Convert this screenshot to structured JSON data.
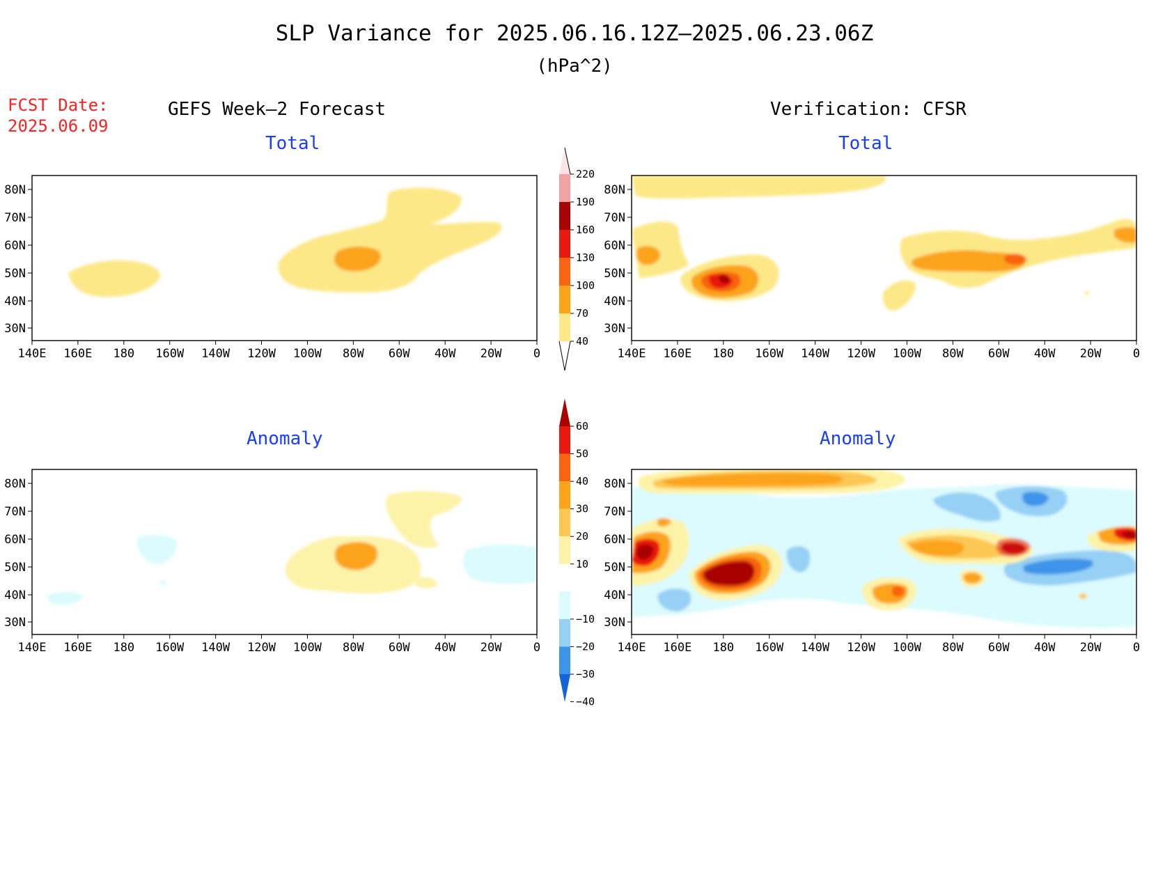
{
  "title": "SLP Variance for 2025.06.16.12Z–2025.06.23.06Z",
  "units": "(hPa^2)",
  "forecast_date": {
    "label": "FCST Date:",
    "value": "2025.06.09"
  },
  "columns": {
    "left": "GEFS Week–2 Forecast",
    "right": "Verification: CFSR"
  },
  "row_labels": {
    "top": "Total",
    "bottom": "Anomaly"
  },
  "axes": {
    "lat_ticks": [
      "80N",
      "70N",
      "60N",
      "50N",
      "40N",
      "30N"
    ],
    "lon_ticks": [
      "140E",
      "160E",
      "180",
      "160W",
      "140W",
      "120W",
      "100W",
      "80W",
      "60W",
      "40W",
      "20W",
      "0"
    ]
  },
  "colorbars": {
    "total": {
      "levels": [
        "40",
        "70",
        "100",
        "130",
        "160",
        "190",
        "220"
      ],
      "colors": [
        "#fde887",
        "#fca31a",
        "#f86411",
        "#e8190e",
        "#a80404",
        "#f2a2a2",
        "#fde4e4"
      ]
    },
    "anomaly": {
      "levels": [
        "60",
        "50",
        "40",
        "30",
        "20",
        "10",
        "−10",
        "−20",
        "−30",
        "−40"
      ],
      "colors": [
        "#a80404",
        "#e8190e",
        "#f86411",
        "#fca31a",
        "#fdc752",
        "#fdf3a8",
        "#ffffff",
        "#dcfbfe",
        "#96d0f5",
        "#3d94e8",
        "#1464d6"
      ]
    }
  },
  "panels": [
    {
      "id": "gefs-total",
      "row": "Total",
      "column": "GEFS Week–2 Forecast"
    },
    {
      "id": "cfsr-total",
      "row": "Total",
      "column": "Verification: CFSR"
    },
    {
      "id": "gefs-anomaly",
      "row": "Anomaly",
      "column": "GEFS Week–2 Forecast"
    },
    {
      "id": "cfsr-anomaly",
      "row": "Anomaly",
      "column": "Verification: CFSR"
    }
  ]
}
